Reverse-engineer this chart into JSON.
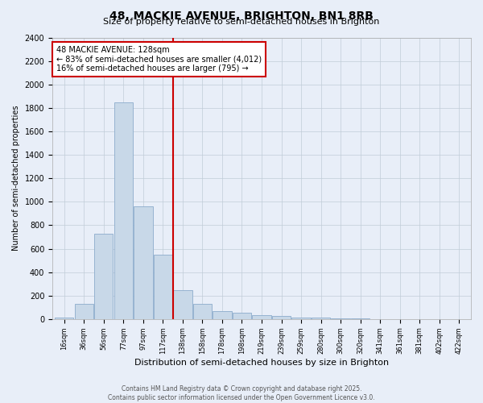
{
  "title": "48, MACKIE AVENUE, BRIGHTON, BN1 8RB",
  "subtitle": "Size of property relative to semi-detached houses in Brighton",
  "xlabel": "Distribution of semi-detached houses by size in Brighton",
  "ylabel": "Number of semi-detached properties",
  "bar_labels": [
    "16sqm",
    "36sqm",
    "56sqm",
    "77sqm",
    "97sqm",
    "117sqm",
    "138sqm",
    "158sqm",
    "178sqm",
    "198sqm",
    "219sqm",
    "239sqm",
    "259sqm",
    "280sqm",
    "300sqm",
    "320sqm",
    "341sqm",
    "361sqm",
    "381sqm",
    "402sqm",
    "422sqm"
  ],
  "bar_values": [
    15,
    130,
    730,
    1850,
    960,
    550,
    245,
    130,
    70,
    55,
    30,
    25,
    15,
    12,
    5,
    3,
    2,
    1,
    1,
    0,
    0
  ],
  "bar_color": "#c8d8e8",
  "bar_edge_color": "#8caccc",
  "vline_color": "#cc0000",
  "annotation_title": "48 MACKIE AVENUE: 128sqm",
  "annotation_line1": "← 83% of semi-detached houses are smaller (4,012)",
  "annotation_line2": "16% of semi-detached houses are larger (795) →",
  "annotation_box_color": "#ffffff",
  "annotation_box_edge": "#cc0000",
  "ylim": [
    0,
    2400
  ],
  "yticks": [
    0,
    200,
    400,
    600,
    800,
    1000,
    1200,
    1400,
    1600,
    1800,
    2000,
    2200,
    2400
  ],
  "grid_color": "#c0ccd8",
  "background_color": "#e8eef8",
  "footer": "Contains HM Land Registry data © Crown copyright and database right 2025.\nContains public sector information licensed under the Open Government Licence v3.0."
}
